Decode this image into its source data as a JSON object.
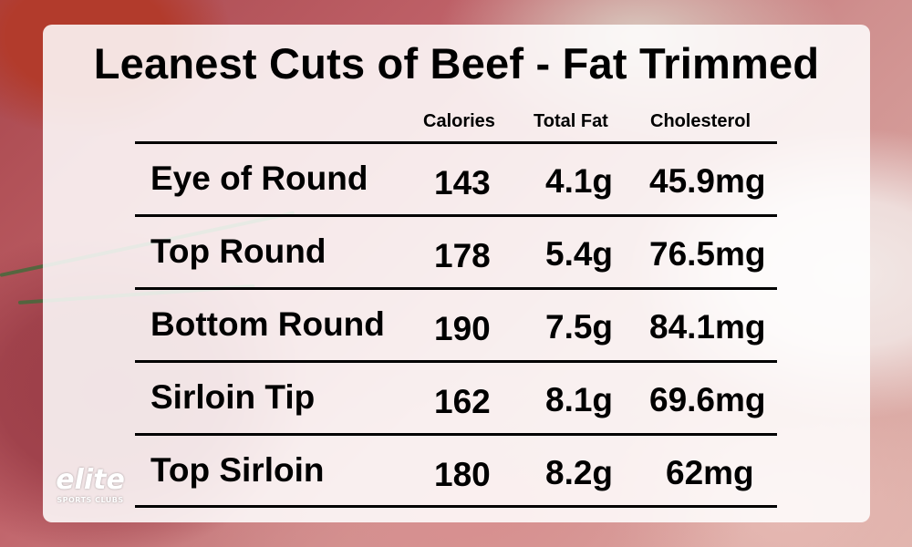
{
  "title": "Leanest Cuts of Beef - Fat Trimmed",
  "columns": {
    "calories": "Calories",
    "total_fat": "Total Fat",
    "cholesterol": "Cholesterol"
  },
  "rows": [
    {
      "cut": "Eye of Round",
      "calories": "143",
      "total_fat": "4.1g",
      "cholesterol": "45.9mg"
    },
    {
      "cut": "Top Round",
      "calories": "178",
      "total_fat": "5.4g",
      "cholesterol": "76.5mg"
    },
    {
      "cut": "Bottom Round",
      "calories": "190",
      "total_fat": "7.5g",
      "cholesterol": "84.1mg"
    },
    {
      "cut": "Sirloin Tip",
      "calories": "162",
      "total_fat": "8.1g",
      "cholesterol": "69.6mg"
    },
    {
      "cut": "Top Sirloin",
      "calories": "180",
      "total_fat": "8.2g",
      "cholesterol": "62mg"
    }
  ],
  "logo": {
    "wordmark": "elite",
    "tagline": "SPORTS CLUBS"
  },
  "colors": {
    "text": "#000000",
    "card": "#ffffff",
    "rule": "#000000"
  }
}
